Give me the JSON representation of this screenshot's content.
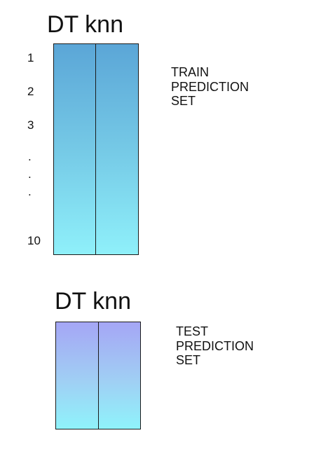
{
  "train": {
    "header_models": "DT  knn",
    "row_labels": {
      "first": "1",
      "second": "2",
      "third": "3",
      "dot": ".",
      "last": "10"
    },
    "label_lines": [
      "TRAIN",
      "PREDICTION",
      "SET"
    ],
    "gradient_colors": [
      "#5ba6d7",
      "#8ff0fa"
    ]
  },
  "test": {
    "header_models": "DT  knn",
    "label_lines": [
      "TEST",
      "PREDICTION",
      "SET"
    ],
    "gradient_colors": [
      "#a5a6f5",
      "#8ff3fb"
    ]
  }
}
